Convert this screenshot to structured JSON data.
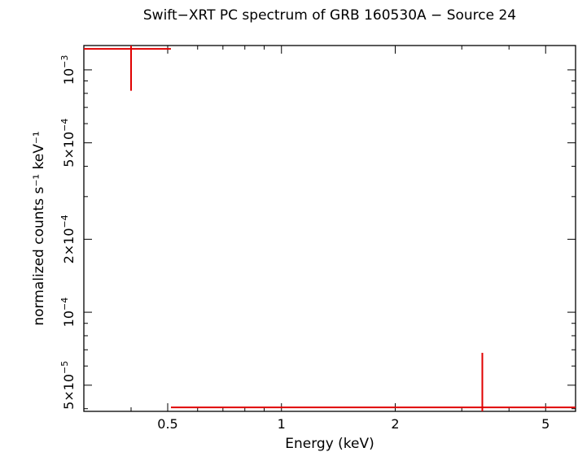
{
  "chart_data": {
    "type": "scatter",
    "title": "Swift−XRT PC spectrum of GRB 160530A − Source 24",
    "xlabel": "Energy (keV)",
    "ylabel": "normalized counts s⁻¹ keV⁻¹",
    "x_scale": "log",
    "y_scale": "log",
    "xlim": [
      0.3,
      6.0
    ],
    "ylim": [
      3.9e-05,
      0.00126
    ],
    "x_ticks": [
      {
        "value": 0.5,
        "label": "0.5"
      },
      {
        "value": 1,
        "label": "1"
      },
      {
        "value": 2,
        "label": "2"
      },
      {
        "value": 5,
        "label": "5"
      }
    ],
    "y_ticks": [
      {
        "value": 5e-05,
        "mant": "5×10",
        "exp": "−5"
      },
      {
        "value": 0.0001,
        "mant": "10",
        "exp": "−4"
      },
      {
        "value": 0.0002,
        "mant": "2×10",
        "exp": "−4"
      },
      {
        "value": 0.0005,
        "mant": "5×10",
        "exp": "−4"
      },
      {
        "value": 0.001,
        "mant": "10",
        "exp": "−3"
      }
    ],
    "series": [
      {
        "color": "#e00000",
        "points": [
          {
            "x": 0.4,
            "x_lo": 0.3,
            "x_hi": 0.51,
            "y": 0.00122,
            "y_lo": 0.00082,
            "y_hi": 0.00126
          },
          {
            "x": 3.4,
            "x_lo": 0.51,
            "x_hi": 6.0,
            "y": 4.05e-05,
            "y_lo": 3.9e-05,
            "y_hi": 6.8e-05
          }
        ]
      }
    ]
  }
}
